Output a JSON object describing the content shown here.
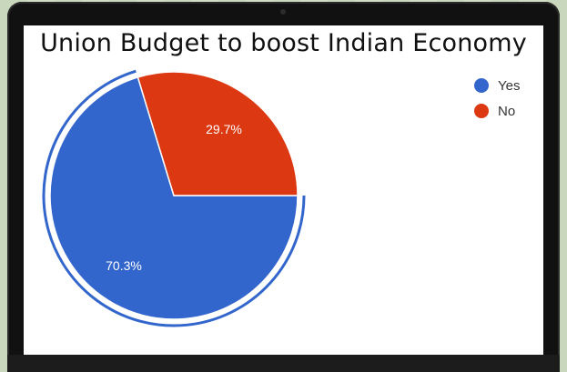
{
  "chart_data": {
    "type": "pie",
    "title": "Union Budget to boost Indian Economy",
    "categories": [
      "Yes",
      "No"
    ],
    "values": [
      70.3,
      29.7
    ],
    "labels": [
      "70.3%",
      "29.7%"
    ],
    "colors": [
      "#3366cc",
      "#dc3912"
    ],
    "legend_position": "top-right",
    "exploded": "Yes"
  }
}
